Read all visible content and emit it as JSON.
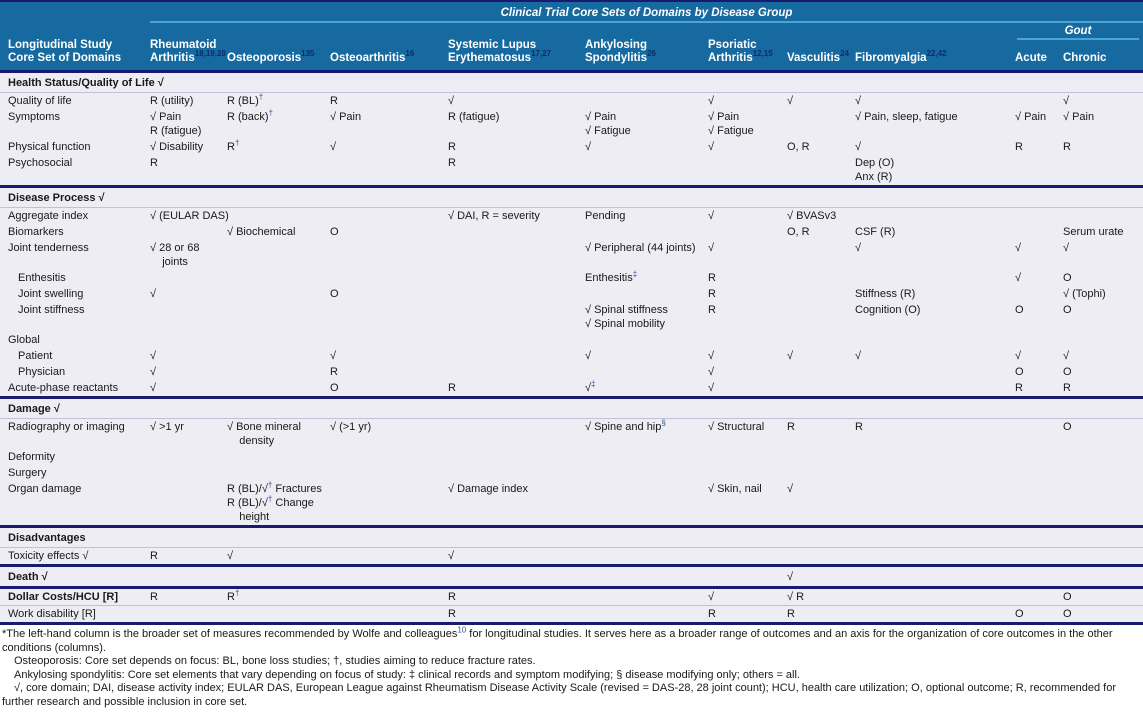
{
  "header": {
    "title": "Clinical Trial Core Sets of Domains by Disease Group",
    "left_line1": "Longitudinal Study",
    "left_line2": "Core Set of Domains",
    "gout_label": "Gout",
    "columns": [
      {
        "text": "Rheumatoid\nArthritis",
        "sup": "18,19,28"
      },
      {
        "text": "Osteoporosis",
        "sup": "135"
      },
      {
        "text": "Osteoarthritis",
        "sup": "16"
      },
      {
        "text": "Systemic Lupus\nErythematosus",
        "sup": "17,27"
      },
      {
        "text": "Ankylosing\nSpondylitis",
        "sup": "26"
      },
      {
        "text": "Psoriatic\nArthritis",
        "sup": "12,15"
      },
      {
        "text": "Vasculitis",
        "sup": "24"
      },
      {
        "text": "Fibromyalgia",
        "sup": "22,42"
      },
      {
        "text": "Acute",
        "sup": ""
      },
      {
        "text": "Chronic",
        "sup": ""
      }
    ]
  },
  "rows": [
    {
      "type": "section",
      "label": "Health Status/Quality of Life √",
      "cells": [
        "",
        "",
        "",
        "",
        "",
        "",
        "",
        "",
        "",
        ""
      ]
    },
    {
      "type": "data",
      "rule": "thin",
      "label": "Quality of life",
      "cells": [
        "R (utility)",
        "R (BL)^{†}",
        "R",
        "√",
        "",
        "√",
        "√",
        "√",
        "",
        "√"
      ]
    },
    {
      "type": "data",
      "label": "Symptoms",
      "cells": [
        "√ Pain\nR (fatigue)",
        "R (back)^{†}",
        "√ Pain",
        "R (fatigue)",
        "√ Pain\n√ Fatigue",
        "√ Pain\n√ Fatigue",
        "",
        "√ Pain, sleep, fatigue",
        "√ Pain",
        "√ Pain"
      ]
    },
    {
      "type": "data",
      "label": "Physical function",
      "cells": [
        "√ Disability",
        "R^{†}",
        "√",
        "R",
        "√",
        "√",
        "O, R",
        "√",
        "R",
        "R"
      ]
    },
    {
      "type": "data",
      "label": "Psychosocial",
      "cells": [
        "R",
        "",
        "",
        "R",
        "",
        "",
        "",
        "Dep (O)\nAnx (R)",
        "",
        ""
      ]
    },
    {
      "type": "section",
      "rule": "thick",
      "label": "Disease Process √",
      "cells": [
        "",
        "",
        "",
        "",
        "",
        "",
        "",
        "",
        "",
        ""
      ]
    },
    {
      "type": "data",
      "rule": "thin",
      "label": "Aggregate index",
      "cells": [
        "√ (EULAR DAS)",
        "",
        "",
        "√ DAI, R = severity",
        "Pending",
        "√",
        "√ BVASv3",
        "",
        "",
        ""
      ]
    },
    {
      "type": "data",
      "label": "Biomarkers",
      "cells": [
        "",
        "√ Biochemical",
        "O",
        "",
        "",
        "",
        "O, R",
        "CSF (R)",
        "",
        "Serum urate"
      ]
    },
    {
      "type": "data",
      "label": "Joint tenderness",
      "cells": [
        "√ 28 or 68\n    joints",
        "",
        "",
        "",
        "√ Peripheral (44 joints)",
        "√",
        "",
        "√",
        "√",
        "√"
      ]
    },
    {
      "type": "data",
      "indent": true,
      "label": "Enthesitis",
      "cells": [
        "",
        "",
        "",
        "",
        "Enthesitis^{‡}",
        "R",
        "",
        "",
        "√",
        "O"
      ]
    },
    {
      "type": "data",
      "indent": true,
      "label": "Joint swelling",
      "cells": [
        "√",
        "",
        "O",
        "",
        "",
        "R",
        "",
        "Stiffness (R)",
        "",
        "√ (Tophi)"
      ]
    },
    {
      "type": "data",
      "indent": true,
      "label": "Joint stiffness",
      "cells": [
        "",
        "",
        "",
        "",
        "√ Spinal stiffness\n√ Spinal mobility",
        "R",
        "",
        "Cognition (O)",
        "O",
        "O"
      ]
    },
    {
      "type": "data",
      "label": "Global",
      "cells": [
        "",
        "",
        "",
        "",
        "",
        "",
        "",
        "",
        "",
        ""
      ]
    },
    {
      "type": "data",
      "indent": true,
      "label": "Patient",
      "cells": [
        "√",
        "",
        "√",
        "",
        "√",
        "√",
        "√",
        "√",
        "√",
        "√"
      ]
    },
    {
      "type": "data",
      "indent": true,
      "label": "Physician",
      "cells": [
        "√",
        "",
        "R",
        "",
        "",
        "√",
        "",
        "",
        "O",
        "O"
      ]
    },
    {
      "type": "data",
      "label": "Acute-phase reactants",
      "cells": [
        "√",
        "",
        "O",
        "R",
        "√^{‡}",
        "√",
        "",
        "",
        "R",
        "R"
      ]
    },
    {
      "type": "section",
      "rule": "thick",
      "label": "Damage √",
      "cells": [
        "",
        "",
        "",
        "",
        "",
        "",
        "",
        "",
        "",
        ""
      ]
    },
    {
      "type": "data",
      "rule": "thin",
      "label": "Radiography or imaging",
      "cells": [
        "√ >1 yr",
        "√ Bone mineral\n    density",
        "√ (>1 yr)",
        "",
        "√ Spine and hip^{§}",
        "√ Structural",
        "R",
        "R",
        "",
        "O"
      ]
    },
    {
      "type": "data",
      "label": "Deformity",
      "cells": [
        "",
        "",
        "",
        "",
        "",
        "",
        "",
        "",
        "",
        ""
      ]
    },
    {
      "type": "data",
      "label": "Surgery",
      "cells": [
        "",
        "",
        "",
        "",
        "",
        "",
        "",
        "",
        "",
        ""
      ]
    },
    {
      "type": "data",
      "label": "Organ damage",
      "cells": [
        "",
        "R (BL)/√^{†} Fractures\nR (BL)/√^{†} Change\n    height",
        "",
        "√ Damage index",
        "",
        "√ Skin, nail",
        "√",
        "",
        "",
        ""
      ]
    },
    {
      "type": "section",
      "rule": "thick",
      "label": "Disadvantages",
      "cells": [
        "",
        "",
        "",
        "",
        "",
        "",
        "",
        "",
        "",
        ""
      ]
    },
    {
      "type": "data",
      "rule": "thin",
      "label": "Toxicity effects √",
      "cells": [
        "R",
        "√",
        "",
        "√",
        "",
        "",
        "",
        "",
        "",
        ""
      ]
    },
    {
      "type": "section",
      "rule": "thick",
      "label": "Death √",
      "cells": [
        "",
        "",
        "",
        "",
        "",
        "",
        "√",
        "",
        "",
        ""
      ]
    },
    {
      "type": "data",
      "rule": "thick",
      "bold": true,
      "label": "Dollar Costs/HCU [R]",
      "cells": [
        "R",
        "R^{†}",
        "",
        "R",
        "",
        "√",
        "√ R",
        "",
        "",
        "O"
      ]
    },
    {
      "type": "data",
      "rule": "thin",
      "label": "Work disability [R]",
      "cells": [
        "",
        "",
        "",
        "R",
        "",
        "R",
        "R",
        "",
        "O",
        "O"
      ]
    }
  ],
  "footnotes": [
    {
      "indent": false,
      "text": "*The left-hand column is the broader set of measures recommended by Wolfe and colleagues^{10} for longitudinal studies. It serves here as a broader range of outcomes and an axis for the organization of core outcomes in the other conditions (columns)."
    },
    {
      "indent": true,
      "text": "Osteoporosis: Core set depends on focus: BL, bone loss studies; †, studies aiming to reduce fracture rates."
    },
    {
      "indent": true,
      "text": "Ankylosing spondylitis: Core set elements that vary depending on focus of study: ‡ clinical records and symptom modifying; § disease modifying only; others = all."
    },
    {
      "indent": true,
      "text": "√, core domain; DAI, disease activity index; EULAR DAS, European League against Rheumatism Disease Activity Scale (revised = DAS-28, 28 joint count); HCU, health care utilization; O, optional outcome; R, recommended for further research and possible inclusion in core set."
    }
  ]
}
